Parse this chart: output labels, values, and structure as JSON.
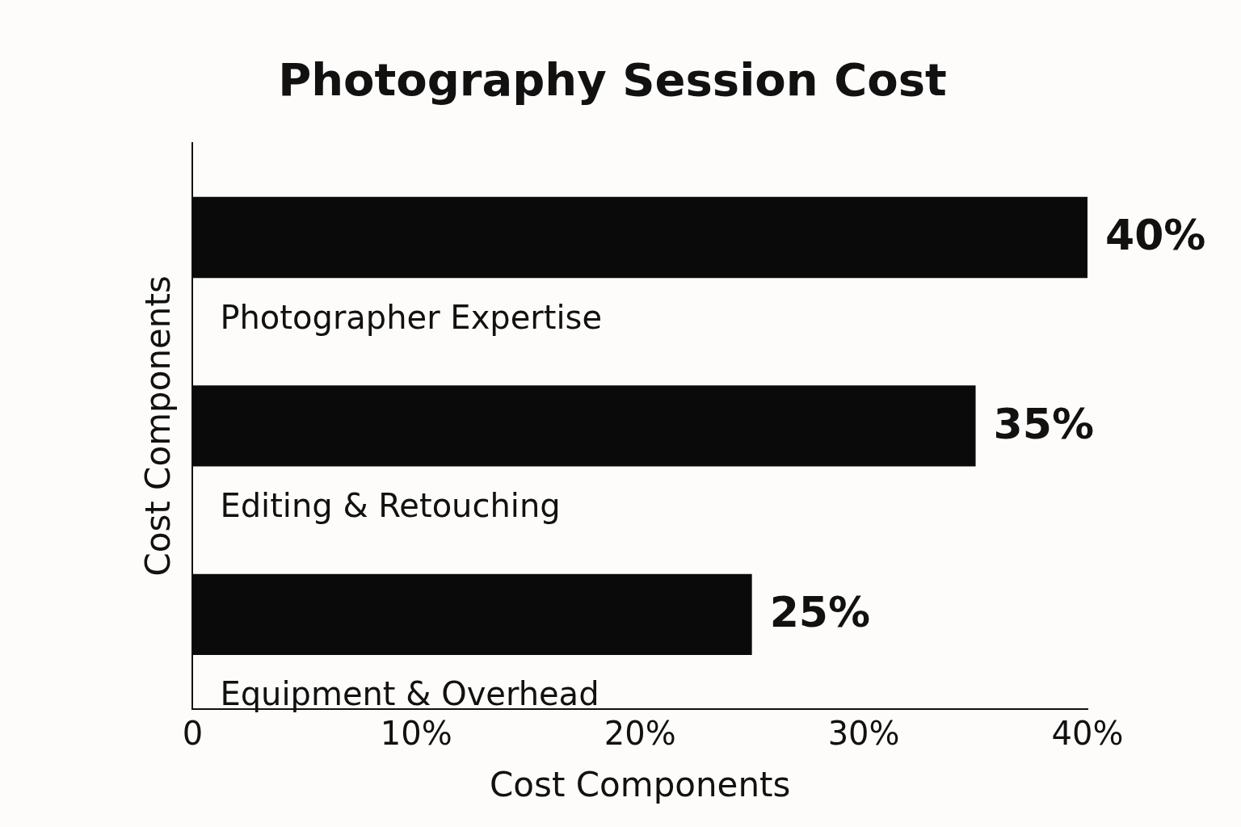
{
  "chart_data": {
    "type": "bar",
    "orientation": "horizontal",
    "title": "Photography Session Cost",
    "xlabel": "Cost Components",
    "ylabel": "Cost Components",
    "categories": [
      "Photographer Expertise",
      "Editing & Retouching",
      "Equipment & Overhead"
    ],
    "values": [
      40,
      35,
      25
    ],
    "color": "#0a0a0a",
    "value_labels": [
      "40%",
      "35%",
      "25%"
    ],
    "xlim": [
      0,
      40
    ],
    "xticks": [
      0,
      {
        "value": 10,
        "label": "10%"
      },
      {
        "value": 20,
        "label": "20%"
      },
      {
        "value": 30,
        "label": "30%"
      },
      {
        "value": 40,
        "label": "40%"
      }
    ],
    "grid": false,
    "legend": false
  }
}
